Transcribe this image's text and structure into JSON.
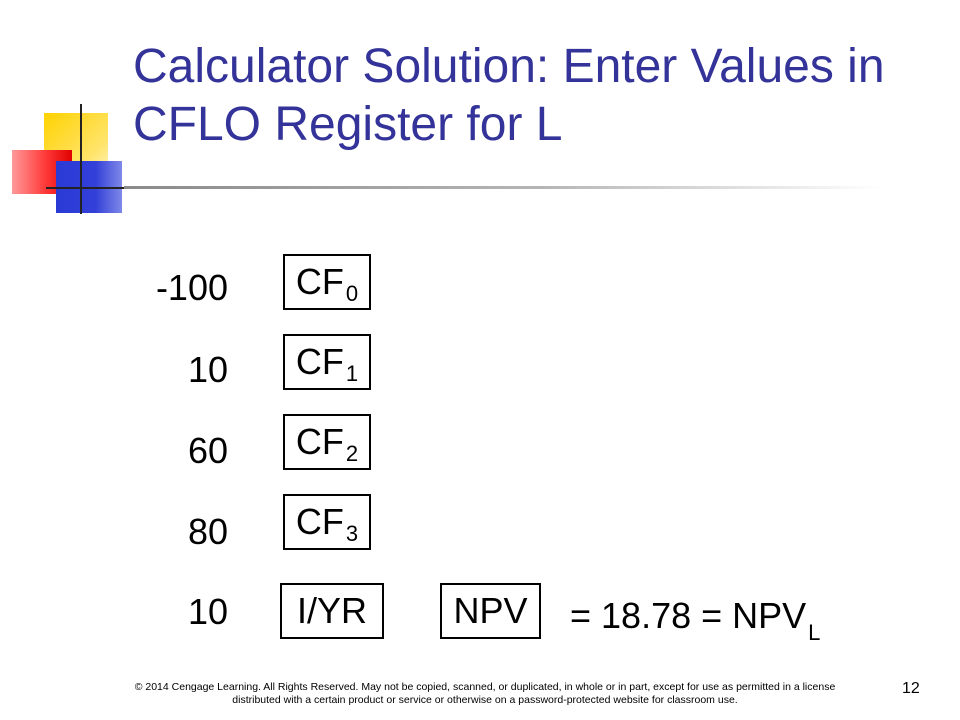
{
  "slide": {
    "title": "Calculator Solution: Enter Values in CFLO Register for L",
    "page_number": "12",
    "copyright": "© 2014 Cengage Learning. All Rights Reserved. May not be copied, scanned, or duplicated, in whole or in part, except for use as permitted in a license distributed with a certain product or service or otherwise on a password-protected website for classroom use."
  },
  "cash_flows": [
    {
      "value": "-100",
      "key": "CF",
      "sub": "0"
    },
    {
      "value": "10",
      "key": "CF",
      "sub": "1"
    },
    {
      "value": "60",
      "key": "CF",
      "sub": "2"
    },
    {
      "value": "80",
      "key": "CF",
      "sub": "3"
    }
  ],
  "interest": {
    "value": "10",
    "key": "I/YR"
  },
  "npv": {
    "key": "NPV",
    "result_text": "= 18.78 = NPV",
    "result_sub": "L"
  }
}
